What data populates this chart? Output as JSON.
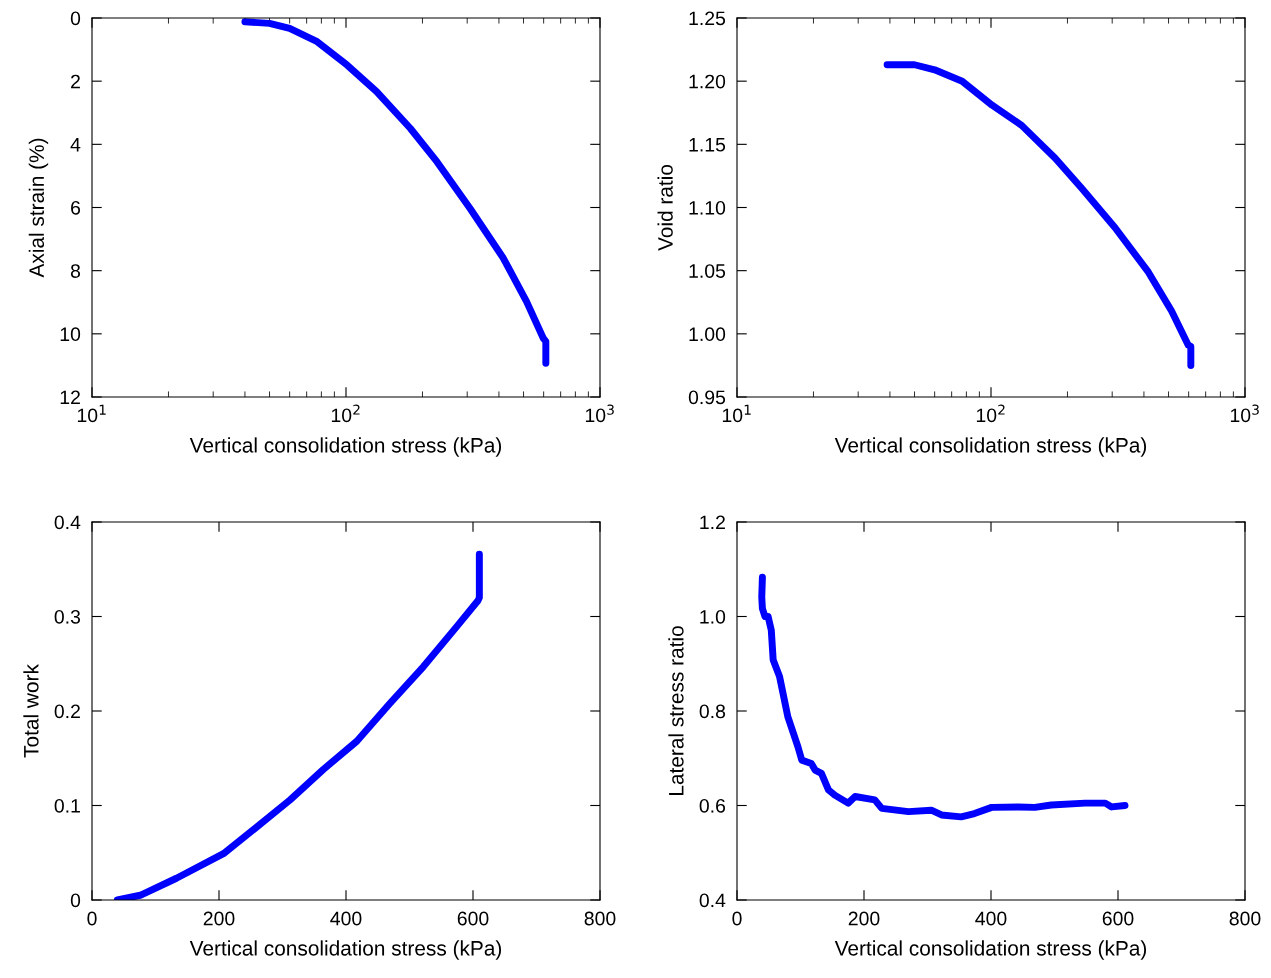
{
  "chart_data": [
    {
      "type": "line",
      "xlabel": "Vertical consolidation stress (kPa)",
      "ylabel": "Axial strain (%)",
      "log": "x",
      "grid": false,
      "marker": "none",
      "line_style": "solid",
      "xlim": [
        10,
        1000
      ],
      "xticks": [
        {
          "value": 10,
          "label": "10$^{1}$"
        },
        {
          "value": 100,
          "label": "10$^{2}$"
        },
        {
          "value": 1000,
          "label": "10$^{3}$"
        }
      ],
      "ylim": [
        12,
        0
      ],
      "yticks": [
        0,
        2,
        4,
        6,
        8,
        10,
        12
      ],
      "series": [
        {
          "color": "#0000ff",
          "x": [
            40,
            50,
            60,
            77,
            101,
            132,
            179,
            228,
            308,
            416,
            514,
            598,
            612,
            612
          ],
          "values": [
            0.12,
            0.17,
            0.33,
            0.75,
            1.49,
            2.33,
            3.49,
            4.55,
            6.03,
            7.6,
            8.98,
            10.14,
            10.24,
            10.93
          ]
        }
      ]
    },
    {
      "type": "line",
      "xlabel": "Vertical consolidation stress (kPa)",
      "ylabel": "Void ratio",
      "log": "x",
      "grid": false,
      "marker": "none",
      "line_style": "solid",
      "xlim": [
        10,
        1000
      ],
      "xticks": [
        {
          "value": 10,
          "label": "10$^{1}$"
        },
        {
          "value": 100,
          "label": "10$^{2}$"
        },
        {
          "value": 1000,
          "label": "10$^{3}$"
        }
      ],
      "ylim": [
        0.95,
        1.25
      ],
      "yticks": [
        0.95,
        {
          "value": 1.0,
          "label": "1.00"
        },
        1.05,
        {
          "value": 1.1,
          "label": "1.10"
        },
        1.15,
        {
          "value": 1.2,
          "label": "1.20"
        },
        1.25
      ],
      "series": [
        {
          "color": "#0000ff",
          "x": [
            39,
            50,
            60,
            77,
            101,
            132,
            179,
            228,
            308,
            416,
            514,
            598,
            612,
            612
          ],
          "values": [
            1.213,
            1.213,
            1.209,
            1.2,
            1.181,
            1.165,
            1.139,
            1.115,
            1.084,
            1.049,
            1.018,
            0.991,
            0.99,
            0.975
          ]
        }
      ]
    },
    {
      "type": "line",
      "xlabel": "Vertical consolidation stress (kPa)",
      "ylabel": "Total work",
      "grid": false,
      "marker": "none",
      "line_style": "solid",
      "xlim": [
        0,
        800
      ],
      "xticks": [
        0,
        200,
        400,
        600,
        800
      ],
      "ylim": [
        0,
        0.4
      ],
      "yticks": [
        0,
        0.1,
        0.2,
        0.3,
        0.4
      ],
      "series": [
        {
          "color": "#0000ff",
          "x": [
            40,
            76,
            133,
            207,
            259,
            312,
            364,
            417,
            469,
            522,
            574,
            608,
            610,
            610
          ],
          "values": [
            0.0,
            0.005,
            0.023,
            0.049,
            0.077,
            0.106,
            0.138,
            0.168,
            0.208,
            0.247,
            0.289,
            0.317,
            0.32,
            0.366
          ]
        }
      ]
    },
    {
      "type": "line",
      "xlabel": "Vertical consolidation stress (kPa)",
      "ylabel": "Lateral stress ratio",
      "grid": false,
      "marker": "none",
      "line_style": "solid",
      "xlim": [
        0,
        800
      ],
      "xticks": [
        0,
        200,
        400,
        600,
        800
      ],
      "ylim": [
        0.4,
        1.2
      ],
      "yticks": [
        0.4,
        0.6,
        0.8,
        {
          "value": 1.0,
          "label": "1.0"
        },
        1.2
      ],
      "series": [
        {
          "color": "#0000ff",
          "x": [
            40,
            39,
            40,
            44,
            49,
            54,
            57,
            67,
            80,
            96,
            102,
            117,
            123,
            133,
            144,
            154,
            175,
            186,
            217,
            228,
            270,
            306,
            322,
            353,
            374,
            401,
            443,
            469,
            495,
            548,
            580,
            590,
            611
          ],
          "values": [
            1.083,
            1.041,
            1.017,
            1.0,
            1.0,
            0.971,
            0.908,
            0.873,
            0.788,
            0.724,
            0.696,
            0.689,
            0.675,
            0.668,
            0.633,
            0.622,
            0.605,
            0.619,
            0.612,
            0.594,
            0.587,
            0.59,
            0.58,
            0.576,
            0.583,
            0.596,
            0.597,
            0.596,
            0.601,
            0.605,
            0.605,
            0.597,
            0.6
          ]
        }
      ]
    }
  ]
}
